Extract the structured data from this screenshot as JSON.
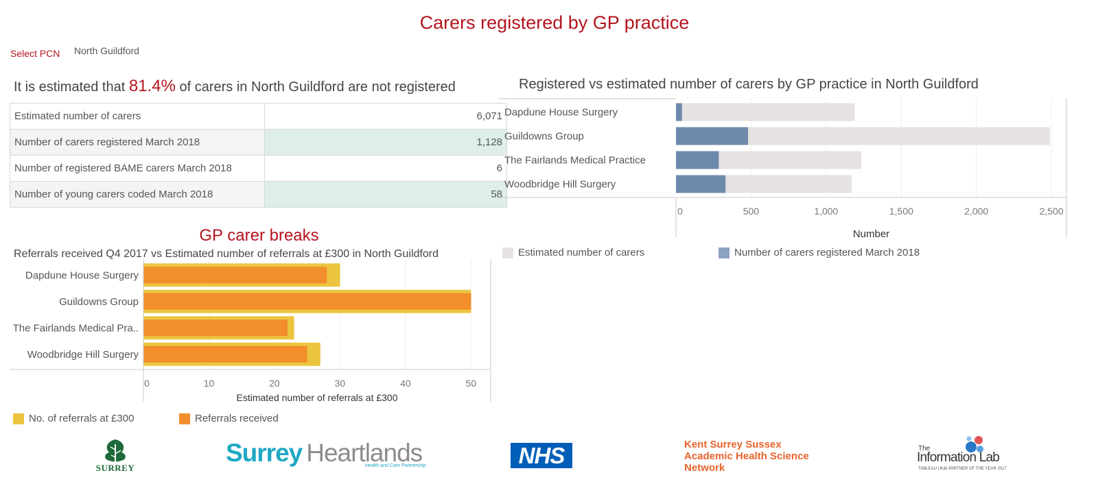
{
  "header": {
    "title": "Carers registered by GP practice",
    "select_label": "Select PCN",
    "selected_pcn": "North Guildford"
  },
  "summary": {
    "prefix": "It is estimated that ",
    "percent": "81.4%",
    "suffix": " of carers in North Guildford are not registered",
    "rows": [
      {
        "label": "Estimated number of carers",
        "value": "6,071"
      },
      {
        "label": "Number of carers registered March 2018",
        "value": "1,128"
      },
      {
        "label": "Number of registered BAME carers March 2018",
        "value": "6"
      },
      {
        "label": "Number of young carers coded March 2018",
        "value": "58"
      }
    ]
  },
  "breaks": {
    "title": "GP carer breaks",
    "subtitle": "Referrals received Q4 2017 vs Estimated number of referrals at £300 in North Guildford"
  },
  "registered_chart": {
    "title": "Registered vs estimated number of carers by GP practice in North Guildford"
  },
  "colors": {
    "accent_red": "#b4141e",
    "estimated_grey": "#e6e2e2",
    "registered_blue": "#6e8aab",
    "registered_legend_blue": "#8ca4c4",
    "ref300_yellow": "#ecc53f",
    "received_orange": "#f28e2b",
    "table_shade": "#deeeeb"
  },
  "logos": {
    "surrey": "SURREY",
    "heartlands_a": "Surrey",
    "heartlands_b": "Heartlands",
    "heartlands_tag": "Health and Care Partnership",
    "nhs": "NHS",
    "kss_1": "Kent Surrey Sussex",
    "kss_2": "Academic Health Science",
    "kss_3": "Network",
    "infolab_the": "The",
    "infolab_name": "Information Lab",
    "infolab_tag": "TABLEAU UK&I PARTNER OF THE YEAR 2017"
  },
  "chart_data": [
    {
      "type": "bar",
      "title": "Registered vs estimated number of carers by GP practice in North Guildford",
      "categories": [
        "Dapdune House Surgery",
        "Guildowns Group",
        "The Fairlands Medical Practice",
        "Woodbridge Hill Surgery"
      ],
      "series": [
        {
          "name": "Estimated number of carers",
          "values": [
            1190,
            2490,
            1235,
            1170
          ]
        },
        {
          "name": "Number of carers registered March 2018",
          "values": [
            40,
            480,
            285,
            330
          ]
        }
      ],
      "xlabel": "Number",
      "xlim": [
        0,
        2600
      ],
      "xticks": [
        "0",
        "500",
        "1,000",
        "1,500",
        "2,000",
        "2,500"
      ],
      "tick_values": [
        0,
        500,
        1000,
        1500,
        2000,
        2500
      ],
      "orientation": "horizontal",
      "grid": true,
      "legend": "bottom"
    },
    {
      "type": "bar",
      "title": "Referrals received Q4 2017 vs Estimated number of referrals at £300 in North Guildford",
      "categories": [
        "Dapdune House Surgery",
        "Guildowns Group",
        "The Fairlands Medical Pra..",
        "Woodbridge Hill Surgery"
      ],
      "series": [
        {
          "name": "No. of referrals at £300",
          "values": [
            30,
            50,
            23,
            27
          ]
        },
        {
          "name": "Referrals received",
          "values": [
            28,
            50,
            22,
            25
          ]
        }
      ],
      "xlabel": "Estimated number of referrals at £300",
      "xlim": [
        0,
        53
      ],
      "xticks": [
        "0",
        "10",
        "20",
        "30",
        "40",
        "50"
      ],
      "tick_values": [
        0,
        10,
        20,
        30,
        40,
        50
      ],
      "orientation": "horizontal",
      "grid": true,
      "legend": "bottom"
    }
  ]
}
